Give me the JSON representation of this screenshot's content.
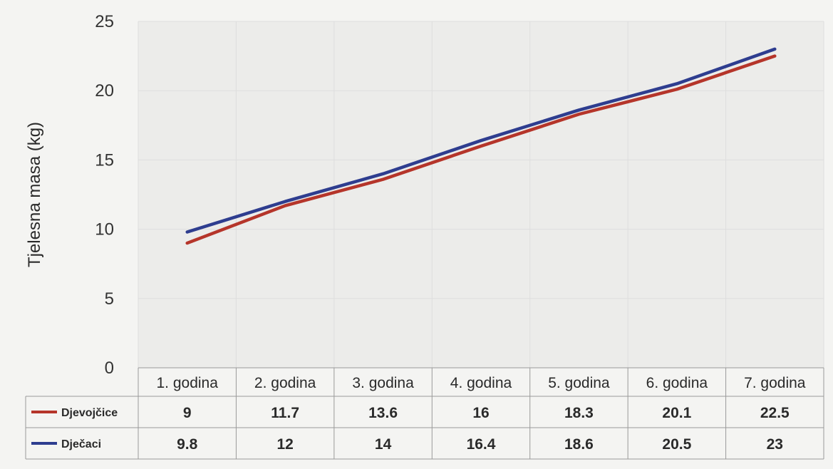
{
  "chart_data": {
    "type": "line",
    "ylabel": "Tjelesna masa  (kg)",
    "xlabel": "",
    "categories": [
      "1. godina",
      "2. godina",
      "3. godina",
      "4. godina",
      "5. godina",
      "6. godina",
      "7. godina"
    ],
    "ylim": [
      0,
      25
    ],
    "yticks": [
      "0",
      "5",
      "10",
      "15",
      "20",
      "25"
    ],
    "grid": true,
    "legend_position": "data-table",
    "series": [
      {
        "name": "Djevojčice",
        "color": "#b5352a",
        "values": [
          9,
          11.7,
          13.6,
          16,
          18.3,
          20.1,
          22.5
        ],
        "labels": [
          "9",
          "11.7",
          "13.6",
          "16",
          "18.3",
          "20.1",
          "22.5"
        ]
      },
      {
        "name": "Dječaci",
        "color": "#2e3d8f",
        "values": [
          9.8,
          12,
          14,
          16.4,
          18.6,
          20.5,
          23
        ],
        "labels": [
          "9.8",
          "12",
          "14",
          "16.4",
          "18.6",
          "20.5",
          "23"
        ]
      }
    ]
  }
}
